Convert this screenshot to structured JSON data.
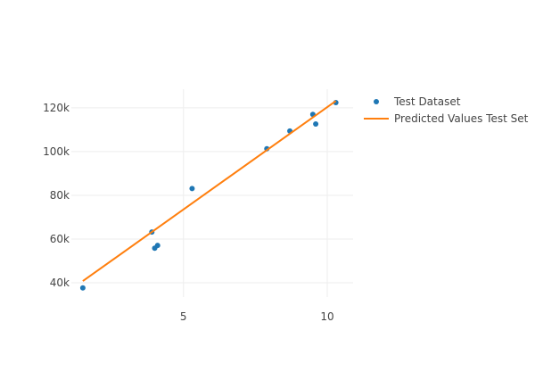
{
  "chart_data": {
    "type": "scatter",
    "title": "",
    "xlabel": "",
    "ylabel": "",
    "xlim": [
      1.1,
      10.9
    ],
    "ylim": [
      33500,
      128500
    ],
    "x_ticks": [
      5,
      10
    ],
    "x_tick_labels": [
      "5",
      "10"
    ],
    "y_ticks": [
      40000,
      60000,
      80000,
      100000,
      120000
    ],
    "y_tick_labels": [
      "40k",
      "60k",
      "80k",
      "100k",
      "120k"
    ],
    "grid": true,
    "legend_position": "right",
    "series": [
      {
        "name": "Test Dataset",
        "type": "scatter",
        "color": "#1f77b4",
        "points": [
          {
            "x": 1.5,
            "y": 37700
          },
          {
            "x": 3.9,
            "y": 63200
          },
          {
            "x": 4.0,
            "y": 55800
          },
          {
            "x": 4.1,
            "y": 57100
          },
          {
            "x": 5.3,
            "y": 83100
          },
          {
            "x": 7.9,
            "y": 101300
          },
          {
            "x": 8.7,
            "y": 109400
          },
          {
            "x": 9.5,
            "y": 117000
          },
          {
            "x": 9.6,
            "y": 112600
          },
          {
            "x": 10.3,
            "y": 122400
          }
        ]
      },
      {
        "name": "Predicted Values Test Set",
        "type": "line",
        "color": "#ff7f0e",
        "points": [
          {
            "x": 1.5,
            "y": 40800
          },
          {
            "x": 10.3,
            "y": 123100
          }
        ]
      }
    ]
  }
}
